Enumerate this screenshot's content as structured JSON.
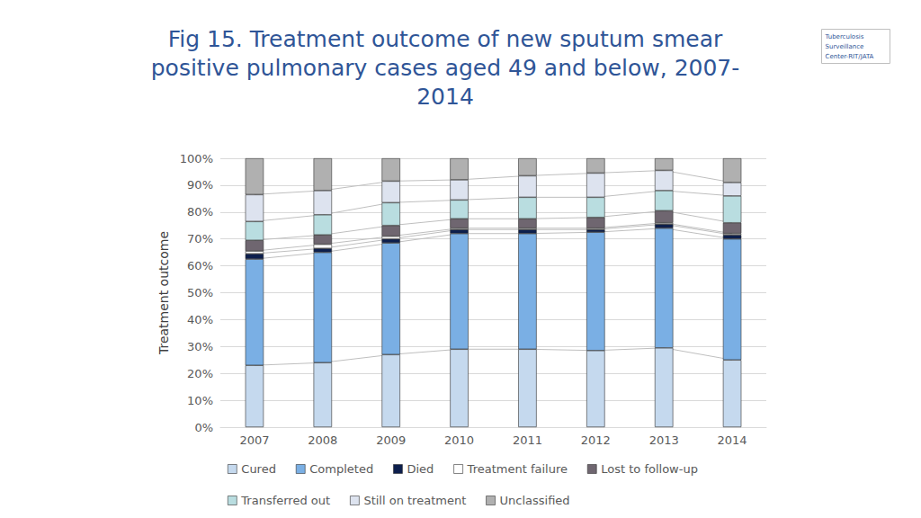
{
  "chart_data": {
    "type": "bar",
    "title": "Fig 15. Treatment outcome of new sputum smear\npositive pulmonary cases aged 49 and below, 2007-\n2014",
    "annotations": [
      "Tuberculosis\nSurveillance\nCenter-RIT/JATA"
    ],
    "y_label": "Treatment outcome",
    "categories": [
      "2007",
      "2008",
      "2009",
      "2010",
      "2011",
      "2012",
      "2013",
      "2014"
    ],
    "series": [
      {
        "name": "Cured",
        "color": "#c5d9ee",
        "values": [
          23,
          24,
          27,
          29,
          29,
          28.5,
          29.5,
          25
        ]
      },
      {
        "name": "Completed",
        "color": "#7aafe4",
        "values": [
          39.5,
          41,
          41.5,
          43,
          43,
          44,
          44.5,
          45
        ]
      },
      {
        "name": "Died",
        "color": "#0d1f4d",
        "values": [
          2,
          1.5,
          1.5,
          1.5,
          1.5,
          1,
          1.5,
          1.5
        ]
      },
      {
        "name": "Treatment failure",
        "color": "#ffffff",
        "values": [
          1,
          1.5,
          1,
          0.5,
          0.5,
          0.5,
          0.5,
          0.5
        ]
      },
      {
        "name": "Lost to follow-up",
        "color": "#6f6670",
        "values": [
          4,
          3.5,
          4,
          3.5,
          3.5,
          4,
          4.5,
          4
        ]
      },
      {
        "name": "Transferred out",
        "color": "#b9dde0",
        "values": [
          7,
          7.5,
          8.5,
          7,
          8,
          7.5,
          7.5,
          10
        ]
      },
      {
        "name": "Still on treatment",
        "color": "#dde3ef",
        "values": [
          10,
          9,
          8,
          7.5,
          8,
          9,
          7.5,
          5
        ]
      },
      {
        "name": "Unclassified",
        "color": "#b0b0b0",
        "values": [
          13.5,
          12,
          8.5,
          8,
          6.5,
          5.5,
          4.5,
          9
        ]
      }
    ],
    "stacked": true,
    "ylim": [
      0,
      100
    ],
    "yticks": [
      {
        "value": 0,
        "label": "0%"
      },
      {
        "value": 10,
        "label": "10%"
      },
      {
        "value": 20,
        "label": "20%"
      },
      {
        "value": 30,
        "label": "30%"
      },
      {
        "value": 40,
        "label": "40%"
      },
      {
        "value": 50,
        "label": "50%"
      },
      {
        "value": 60,
        "label": "60%"
      },
      {
        "value": 70,
        "label": "70%"
      },
      {
        "value": 80,
        "label": "80%"
      },
      {
        "value": 90,
        "label": "90%"
      },
      {
        "value": 100,
        "label": "100%"
      }
    ],
    "grid": true,
    "legend": "bottom"
  }
}
